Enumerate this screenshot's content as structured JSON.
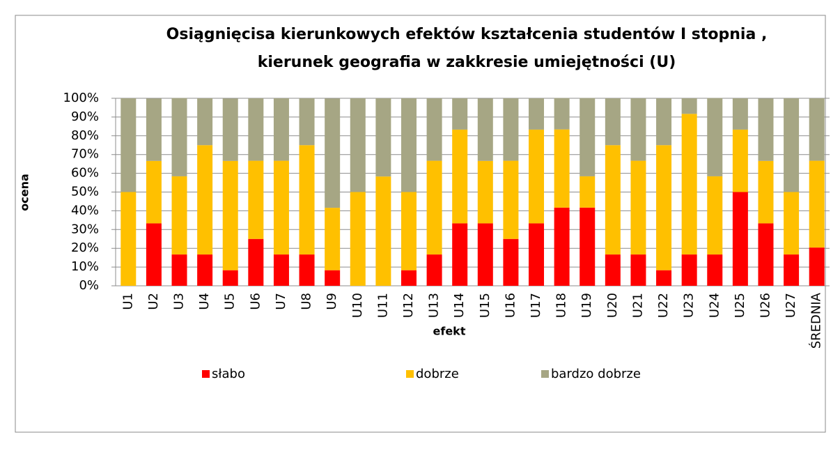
{
  "chart_data": {
    "type": "stacked_bar",
    "title": [
      "Osiągnięcisa kierunkowych efektów kształcenia studentów I stopnia ,",
      "kierunek geografia w zakkresie umiejętności (U)"
    ],
    "y_label": "ocena",
    "x_label": "efekt",
    "categories": [
      "U1",
      "U2",
      "U3",
      "U4",
      "U5",
      "U6",
      "U7",
      "U8",
      "U9",
      "U10",
      "U11",
      "U12",
      "U13",
      "U14",
      "U15",
      "U16",
      "U17",
      "U18",
      "U19",
      "U20",
      "U21",
      "U22",
      "U23",
      "U24",
      "U25",
      "U26",
      "U27",
      "ŚREDNIA"
    ],
    "series": [
      {
        "name": "słabo",
        "color": "#ff0000",
        "values": [
          0,
          33.3,
          16.7,
          16.7,
          8.3,
          25,
          16.7,
          16.7,
          8.3,
          0,
          0,
          8.3,
          16.7,
          33.3,
          33.3,
          25,
          33.3,
          41.7,
          41.7,
          16.7,
          16.7,
          8.3,
          16.7,
          16.7,
          50,
          33.3,
          16.7,
          20.4
        ]
      },
      {
        "name": "dobrze",
        "color": "#ffc000",
        "values": [
          50,
          33.3,
          41.7,
          58.3,
          58.3,
          41.7,
          50,
          58.3,
          33.3,
          50,
          58.3,
          41.7,
          50,
          50,
          33.3,
          41.7,
          50,
          41.7,
          16.7,
          58.3,
          50,
          66.7,
          75,
          41.7,
          33.3,
          33.3,
          33.3,
          46.3
        ]
      },
      {
        "name": "bardzo dobrze",
        "color": "#a6a684",
        "values": [
          50,
          33.3,
          41.7,
          25,
          33.3,
          33.3,
          33.3,
          25,
          58.3,
          50,
          41.7,
          50,
          33.3,
          16.7,
          33.3,
          33.3,
          16.7,
          16.7,
          41.7,
          25,
          33.3,
          25,
          8.3,
          41.7,
          16.7,
          33.3,
          50,
          33.3
        ]
      }
    ],
    "ylim": [
      0,
      100
    ],
    "yticks": [
      {
        "value": 0,
        "label": "0%"
      },
      {
        "value": 10,
        "label": "10%"
      },
      {
        "value": 20,
        "label": "20%"
      },
      {
        "value": 30,
        "label": "30%"
      },
      {
        "value": 40,
        "label": "40%"
      },
      {
        "value": 50,
        "label": "50%"
      },
      {
        "value": 60,
        "label": "60%"
      },
      {
        "value": 70,
        "label": "70%"
      },
      {
        "value": 80,
        "label": "80%"
      },
      {
        "value": 90,
        "label": "90%"
      },
      {
        "value": 100,
        "label": "100%"
      }
    ],
    "grid": true,
    "legend": "bottom"
  }
}
